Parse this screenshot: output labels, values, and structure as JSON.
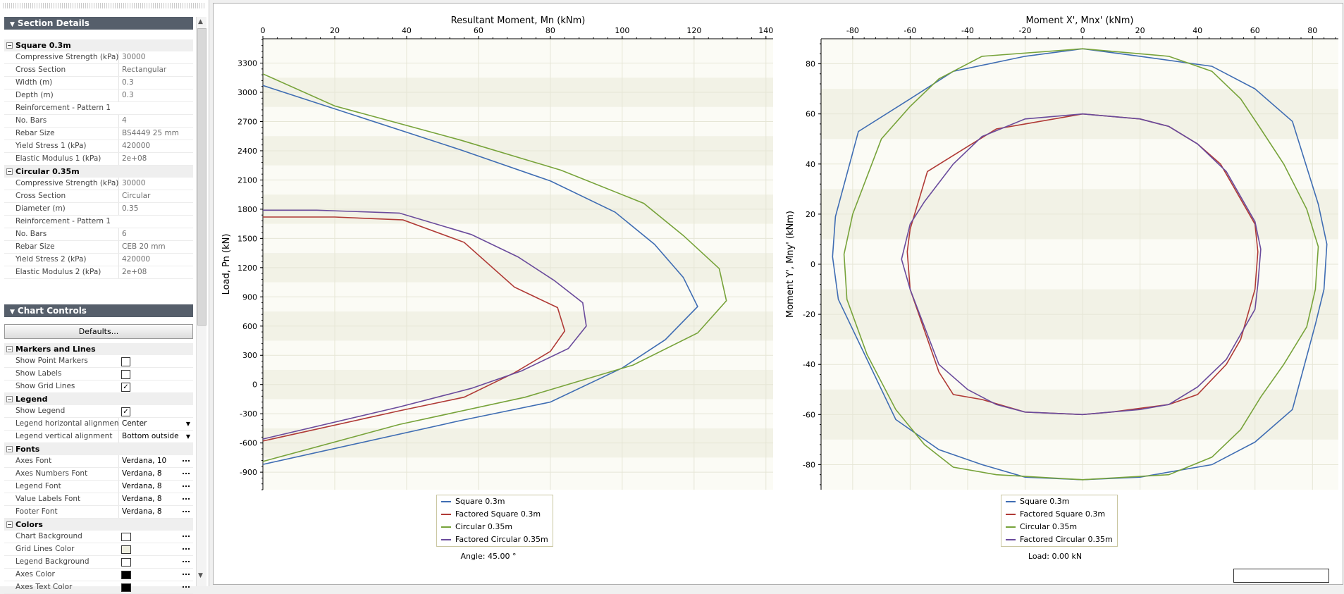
{
  "panel": {
    "section_details_title": "Section Details",
    "sections": [
      {
        "name": "Square 0.3m",
        "props": [
          {
            "k": "Compressive Strength (kPa)",
            "v": "30000"
          },
          {
            "k": "Cross Section",
            "v": "Rectangular"
          },
          {
            "k": "Width (m)",
            "v": "0.3"
          },
          {
            "k": "Depth (m)",
            "v": "0.3"
          },
          {
            "k": "Reinforcement - Pattern 1",
            "v": ""
          },
          {
            "k": "No. Bars",
            "v": "4"
          },
          {
            "k": "Rebar Size",
            "v": "BS4449 25 mm"
          },
          {
            "k": "Yield Stress 1 (kPa)",
            "v": "420000"
          },
          {
            "k": "Elastic Modulus 1 (kPa)",
            "v": "2e+08"
          }
        ]
      },
      {
        "name": "Circular 0.35m",
        "props": [
          {
            "k": "Compressive Strength (kPa)",
            "v": "30000"
          },
          {
            "k": "Cross Section",
            "v": "Circular"
          },
          {
            "k": "Diameter (m)",
            "v": "0.35"
          },
          {
            "k": "Reinforcement - Pattern 1",
            "v": ""
          },
          {
            "k": "No. Bars",
            "v": "6"
          },
          {
            "k": "Rebar Size",
            "v": "CEB 20 mm"
          },
          {
            "k": "Yield Stress 2 (kPa)",
            "v": "420000"
          },
          {
            "k": "Elastic Modulus 2 (kPa)",
            "v": "2e+08"
          }
        ]
      }
    ],
    "chart_controls_title": "Chart Controls",
    "defaults_button": "Defaults...",
    "markers_lines": {
      "title": "Markers and Lines",
      "show_point_markers": {
        "label": "Show Point Markers",
        "checked": false
      },
      "show_labels": {
        "label": "Show Labels",
        "checked": false
      },
      "show_grid_lines": {
        "label": "Show Grid Lines",
        "checked": true
      }
    },
    "legend": {
      "title": "Legend",
      "show_legend": {
        "label": "Show Legend",
        "checked": true
      },
      "h_align": {
        "label": "Legend horizontal alignment",
        "value": "Center"
      },
      "v_align": {
        "label": "Legend vertical alignment",
        "value": "Bottom outside"
      }
    },
    "fonts": {
      "title": "Fonts",
      "items": [
        {
          "k": "Axes Font",
          "v": "Verdana, 10"
        },
        {
          "k": "Axes Numbers Font",
          "v": "Verdana, 8"
        },
        {
          "k": "Legend Font",
          "v": "Verdana, 8"
        },
        {
          "k": "Value Labels Font",
          "v": "Verdana, 8"
        },
        {
          "k": "Footer Font",
          "v": "Verdana, 8"
        }
      ]
    },
    "colors": {
      "title": "Colors",
      "items": [
        {
          "k": "Chart Background",
          "color": "#ffffff"
        },
        {
          "k": "Grid Lines Color",
          "color": "#efefe0"
        },
        {
          "k": "Legend Background",
          "color": "#ffffff"
        },
        {
          "k": "Axes Color",
          "color": "#000000"
        },
        {
          "k": "Axes Text Color",
          "color": "#000000"
        }
      ]
    }
  },
  "series_colors": {
    "Square 0.3m": "#3f6db3",
    "Factored Square 0.3m": "#b03a36",
    "Circular 0.35m": "#77a33a",
    "Factored Circular 0.35m": "#6a4b9c"
  },
  "chart_data": [
    {
      "type": "line",
      "title": "Resultant Moment, Mn (kNm)",
      "xlabel": "Resultant Moment, Mn (kNm)",
      "ylabel": "Load, Pn (kN)",
      "xlim": [
        0,
        142
      ],
      "ylim": [
        -1080,
        3550
      ],
      "xticks": [
        0,
        20,
        40,
        60,
        80,
        100,
        120,
        140
      ],
      "yticks": [
        -900,
        -600,
        -300,
        0,
        300,
        600,
        900,
        1200,
        1500,
        1800,
        2100,
        2400,
        2700,
        3000,
        3300
      ],
      "grid": true,
      "legend_position": "bottom",
      "footer": "Angle: 45.00 °",
      "series": [
        {
          "name": "Square 0.3m",
          "points": [
            [
              0,
              3070
            ],
            [
              55,
              2410
            ],
            [
              80,
              2090
            ],
            [
              98,
              1770
            ],
            [
              109,
              1440
            ],
            [
              117,
              1100
            ],
            [
              121,
              800
            ],
            [
              112,
              460
            ],
            [
              100,
              170
            ],
            [
              80,
              -180
            ],
            [
              55,
              -370
            ],
            [
              0,
              -820
            ]
          ]
        },
        {
          "name": "Factored Square 0.3m",
          "points": [
            [
              0,
              1720
            ],
            [
              20,
              1720
            ],
            [
              39,
              1690
            ],
            [
              56,
              1460
            ],
            [
              70,
              1000
            ],
            [
              82,
              790
            ],
            [
              84,
              550
            ],
            [
              80,
              340
            ],
            [
              70,
              120
            ],
            [
              56,
              -130
            ],
            [
              38,
              -270
            ],
            [
              0,
              -580
            ]
          ]
        },
        {
          "name": "Circular 0.35m",
          "points": [
            [
              0,
              3190
            ],
            [
              20,
              2860
            ],
            [
              55,
              2510
            ],
            [
              83,
              2200
            ],
            [
              106,
              1860
            ],
            [
              117,
              1530
            ],
            [
              127,
              1190
            ],
            [
              129,
              860
            ],
            [
              121,
              530
            ],
            [
              103,
              200
            ],
            [
              73,
              -130
            ],
            [
              38,
              -410
            ],
            [
              0,
              -790
            ]
          ]
        },
        {
          "name": "Factored Circular 0.35m",
          "points": [
            [
              0,
              1790
            ],
            [
              15,
              1790
            ],
            [
              38,
              1760
            ],
            [
              58,
              1540
            ],
            [
              71,
              1310
            ],
            [
              81,
              1070
            ],
            [
              89,
              840
            ],
            [
              90,
              600
            ],
            [
              85,
              370
            ],
            [
              72,
              140
            ],
            [
              58,
              -40
            ],
            [
              38,
              -230
            ],
            [
              0,
              -560
            ]
          ]
        }
      ]
    },
    {
      "type": "line",
      "title": "Moment X', Mnx' (kNm)",
      "xlabel": "Moment X', Mnx' (kNm)",
      "ylabel": "Moment Y', Mny' (kNm)",
      "xlim": [
        -91,
        89
      ],
      "ylim": [
        -90,
        90
      ],
      "xticks": [
        -80,
        -60,
        -40,
        -20,
        0,
        20,
        40,
        60,
        80
      ],
      "yticks": [
        -80,
        -60,
        -40,
        -20,
        0,
        20,
        40,
        60,
        80
      ],
      "grid": true,
      "legend_position": "bottom",
      "footer": "Load: 0.00 kN",
      "series": [
        {
          "name": "Square 0.3m",
          "points": [
            [
              0,
              86
            ],
            [
              20,
              83
            ],
            [
              45,
              79
            ],
            [
              60,
              70
            ],
            [
              73,
              57
            ],
            [
              82,
              24
            ],
            [
              85,
              8
            ],
            [
              84,
              -10
            ],
            [
              81,
              -24
            ],
            [
              73,
              -58
            ],
            [
              60,
              -71
            ],
            [
              45,
              -80
            ],
            [
              20,
              -85
            ],
            [
              0,
              -86
            ],
            [
              -20,
              -85
            ],
            [
              -35,
              -80
            ],
            [
              -50,
              -74
            ],
            [
              -65,
              -62
            ],
            [
              -85,
              -14
            ],
            [
              -87,
              3
            ],
            [
              -86,
              19
            ],
            [
              -78,
              53
            ],
            [
              -60,
              66
            ],
            [
              -45,
              77
            ],
            [
              -20,
              83
            ],
            [
              0,
              86
            ]
          ]
        },
        {
          "name": "Factored Square 0.3m",
          "points": [
            [
              0,
              60
            ],
            [
              20,
              58
            ],
            [
              30,
              55
            ],
            [
              40,
              48
            ],
            [
              48,
              40
            ],
            [
              60,
              16
            ],
            [
              61,
              5
            ],
            [
              60,
              -10
            ],
            [
              55,
              -30
            ],
            [
              50,
              -40
            ],
            [
              40,
              -52
            ],
            [
              30,
              -56
            ],
            [
              10,
              -59
            ],
            [
              0,
              -60
            ],
            [
              -20,
              -59
            ],
            [
              -35,
              -54
            ],
            [
              -45,
              -52
            ],
            [
              -50,
              -43
            ],
            [
              -60,
              -10
            ],
            [
              -61,
              5
            ],
            [
              -60,
              14
            ],
            [
              -54,
              37
            ],
            [
              -40,
              47
            ],
            [
              -30,
              54
            ],
            [
              -20,
              56
            ],
            [
              0,
              60
            ]
          ]
        },
        {
          "name": "Circular 0.35m",
          "points": [
            [
              0,
              86
            ],
            [
              30,
              83
            ],
            [
              45,
              77
            ],
            [
              55,
              66
            ],
            [
              62,
              54
            ],
            [
              70,
              40
            ],
            [
              78,
              22
            ],
            [
              82,
              7
            ],
            [
              81,
              -10
            ],
            [
              78,
              -25
            ],
            [
              70,
              -40
            ],
            [
              62,
              -53
            ],
            [
              55,
              -66
            ],
            [
              45,
              -77
            ],
            [
              30,
              -84
            ],
            [
              0,
              -86
            ],
            [
              -30,
              -84
            ],
            [
              -45,
              -81
            ],
            [
              -55,
              -72
            ],
            [
              -65,
              -58
            ],
            [
              -75,
              -36
            ],
            [
              -82,
              -14
            ],
            [
              -83,
              4
            ],
            [
              -80,
              20
            ],
            [
              -70,
              50
            ],
            [
              -60,
              63
            ],
            [
              -50,
              74
            ],
            [
              -35,
              83
            ],
            [
              0,
              86
            ]
          ]
        },
        {
          "name": "Factored Circular 0.35m",
          "points": [
            [
              0,
              60
            ],
            [
              20,
              58
            ],
            [
              30,
              55
            ],
            [
              40,
              48
            ],
            [
              50,
              37
            ],
            [
              60,
              17
            ],
            [
              62,
              6
            ],
            [
              61,
              -8
            ],
            [
              60,
              -18
            ],
            [
              50,
              -38
            ],
            [
              40,
              -49
            ],
            [
              30,
              -56
            ],
            [
              20,
              -58
            ],
            [
              0,
              -60
            ],
            [
              -20,
              -59
            ],
            [
              -30,
              -56
            ],
            [
              -40,
              -50
            ],
            [
              -50,
              -40
            ],
            [
              -60,
              -10
            ],
            [
              -63,
              2
            ],
            [
              -60,
              16
            ],
            [
              -55,
              25
            ],
            [
              -45,
              40
            ],
            [
              -35,
              51
            ],
            [
              -20,
              58
            ],
            [
              0,
              60
            ]
          ]
        }
      ]
    }
  ]
}
